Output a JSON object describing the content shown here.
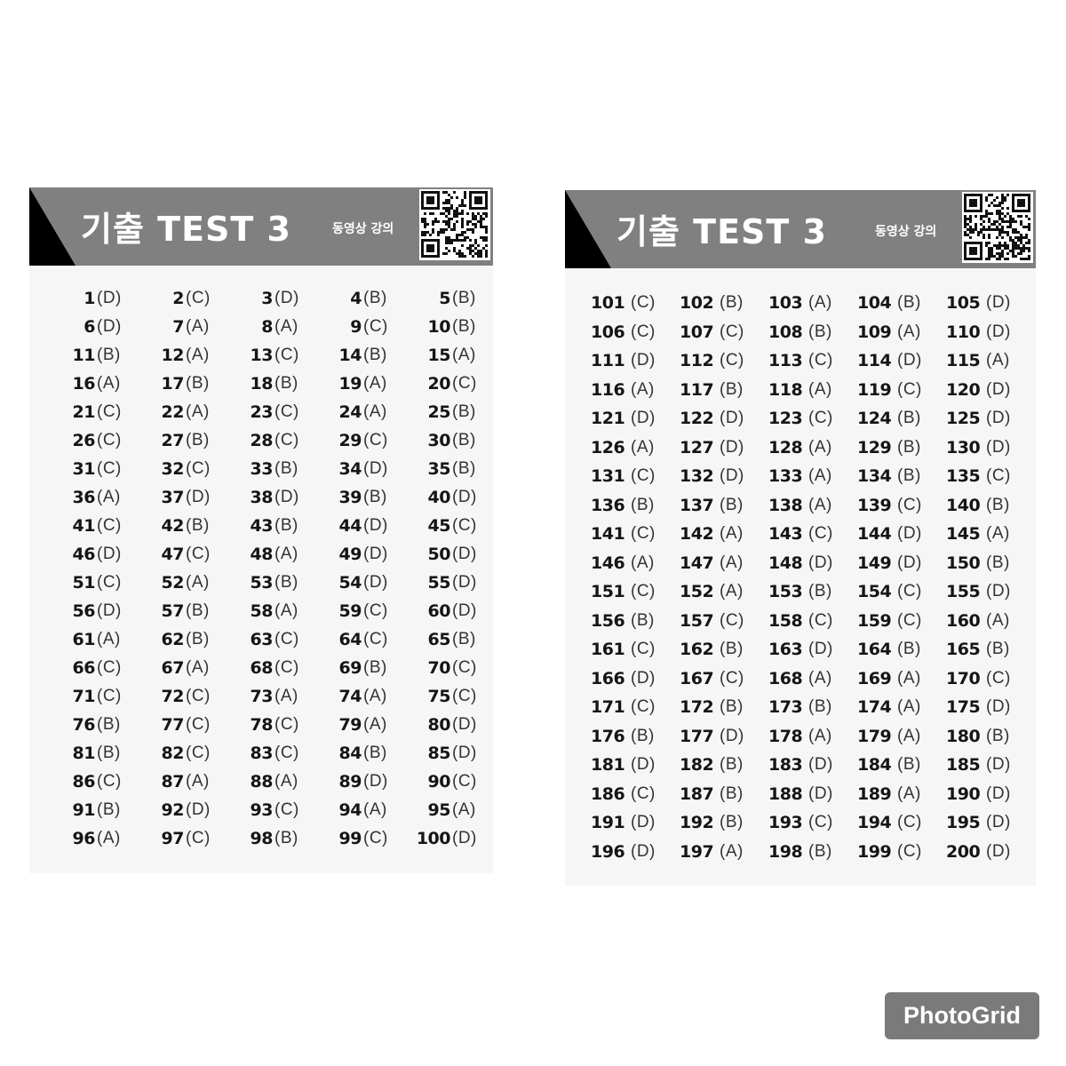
{
  "panels": [
    {
      "title": "기출 TEST 3",
      "subtitle": "동영상 강의",
      "answers": [
        {
          "n": "1",
          "a": "(D)"
        },
        {
          "n": "2",
          "a": "(C)"
        },
        {
          "n": "3",
          "a": "(D)"
        },
        {
          "n": "4",
          "a": "(B)"
        },
        {
          "n": "5",
          "a": "(B)"
        },
        {
          "n": "6",
          "a": "(D)"
        },
        {
          "n": "7",
          "a": "(A)"
        },
        {
          "n": "8",
          "a": "(A)"
        },
        {
          "n": "9",
          "a": "(C)"
        },
        {
          "n": "10",
          "a": "(B)"
        },
        {
          "n": "11",
          "a": "(B)"
        },
        {
          "n": "12",
          "a": "(A)"
        },
        {
          "n": "13",
          "a": "(C)"
        },
        {
          "n": "14",
          "a": "(B)"
        },
        {
          "n": "15",
          "a": "(A)"
        },
        {
          "n": "16",
          "a": "(A)"
        },
        {
          "n": "17",
          "a": "(B)"
        },
        {
          "n": "18",
          "a": "(B)"
        },
        {
          "n": "19",
          "a": "(A)"
        },
        {
          "n": "20",
          "a": "(C)"
        },
        {
          "n": "21",
          "a": "(C)"
        },
        {
          "n": "22",
          "a": "(A)"
        },
        {
          "n": "23",
          "a": "(C)"
        },
        {
          "n": "24",
          "a": "(A)"
        },
        {
          "n": "25",
          "a": "(B)"
        },
        {
          "n": "26",
          "a": "(C)"
        },
        {
          "n": "27",
          "a": "(B)"
        },
        {
          "n": "28",
          "a": "(C)"
        },
        {
          "n": "29",
          "a": "(C)"
        },
        {
          "n": "30",
          "a": "(B)"
        },
        {
          "n": "31",
          "a": "(C)"
        },
        {
          "n": "32",
          "a": "(C)"
        },
        {
          "n": "33",
          "a": "(B)"
        },
        {
          "n": "34",
          "a": "(D)"
        },
        {
          "n": "35",
          "a": "(B)"
        },
        {
          "n": "36",
          "a": "(A)"
        },
        {
          "n": "37",
          "a": "(D)"
        },
        {
          "n": "38",
          "a": "(D)"
        },
        {
          "n": "39",
          "a": "(B)"
        },
        {
          "n": "40",
          "a": "(D)"
        },
        {
          "n": "41",
          "a": "(C)"
        },
        {
          "n": "42",
          "a": "(B)"
        },
        {
          "n": "43",
          "a": "(B)"
        },
        {
          "n": "44",
          "a": "(D)"
        },
        {
          "n": "45",
          "a": "(C)"
        },
        {
          "n": "46",
          "a": "(D)"
        },
        {
          "n": "47",
          "a": "(C)"
        },
        {
          "n": "48",
          "a": "(A)"
        },
        {
          "n": "49",
          "a": "(D)"
        },
        {
          "n": "50",
          "a": "(D)"
        },
        {
          "n": "51",
          "a": "(C)"
        },
        {
          "n": "52",
          "a": "(A)"
        },
        {
          "n": "53",
          "a": "(B)"
        },
        {
          "n": "54",
          "a": "(D)"
        },
        {
          "n": "55",
          "a": "(D)"
        },
        {
          "n": "56",
          "a": "(D)"
        },
        {
          "n": "57",
          "a": "(B)"
        },
        {
          "n": "58",
          "a": "(A)"
        },
        {
          "n": "59",
          "a": "(C)"
        },
        {
          "n": "60",
          "a": "(D)"
        },
        {
          "n": "61",
          "a": "(A)"
        },
        {
          "n": "62",
          "a": "(B)"
        },
        {
          "n": "63",
          "a": "(C)"
        },
        {
          "n": "64",
          "a": "(C)"
        },
        {
          "n": "65",
          "a": "(B)"
        },
        {
          "n": "66",
          "a": "(C)"
        },
        {
          "n": "67",
          "a": "(A)"
        },
        {
          "n": "68",
          "a": "(C)"
        },
        {
          "n": "69",
          "a": "(B)"
        },
        {
          "n": "70",
          "a": "(C)"
        },
        {
          "n": "71",
          "a": "(C)"
        },
        {
          "n": "72",
          "a": "(C)"
        },
        {
          "n": "73",
          "a": "(A)"
        },
        {
          "n": "74",
          "a": "(A)"
        },
        {
          "n": "75",
          "a": "(C)"
        },
        {
          "n": "76",
          "a": "(B)"
        },
        {
          "n": "77",
          "a": "(C)"
        },
        {
          "n": "78",
          "a": "(C)"
        },
        {
          "n": "79",
          "a": "(A)"
        },
        {
          "n": "80",
          "a": "(D)"
        },
        {
          "n": "81",
          "a": "(B)"
        },
        {
          "n": "82",
          "a": "(C)"
        },
        {
          "n": "83",
          "a": "(C)"
        },
        {
          "n": "84",
          "a": "(B)"
        },
        {
          "n": "85",
          "a": "(D)"
        },
        {
          "n": "86",
          "a": "(C)"
        },
        {
          "n": "87",
          "a": "(A)"
        },
        {
          "n": "88",
          "a": "(A)"
        },
        {
          "n": "89",
          "a": "(D)"
        },
        {
          "n": "90",
          "a": "(C)"
        },
        {
          "n": "91",
          "a": "(B)"
        },
        {
          "n": "92",
          "a": "(D)"
        },
        {
          "n": "93",
          "a": "(C)"
        },
        {
          "n": "94",
          "a": "(A)"
        },
        {
          "n": "95",
          "a": "(A)"
        },
        {
          "n": "96",
          "a": "(A)"
        },
        {
          "n": "97",
          "a": "(C)"
        },
        {
          "n": "98",
          "a": "(B)"
        },
        {
          "n": "99",
          "a": "(C)"
        },
        {
          "n": "100",
          "a": "(D)"
        }
      ]
    },
    {
      "title": "기출 TEST 3",
      "subtitle": "동영상 강의",
      "answers": [
        {
          "n": "101",
          "a": "(C)"
        },
        {
          "n": "102",
          "a": "(B)"
        },
        {
          "n": "103",
          "a": "(A)"
        },
        {
          "n": "104",
          "a": "(B)"
        },
        {
          "n": "105",
          "a": "(D)"
        },
        {
          "n": "106",
          "a": "(C)"
        },
        {
          "n": "107",
          "a": "(C)"
        },
        {
          "n": "108",
          "a": "(B)"
        },
        {
          "n": "109",
          "a": "(A)"
        },
        {
          "n": "110",
          "a": "(D)"
        },
        {
          "n": "111",
          "a": "(D)"
        },
        {
          "n": "112",
          "a": "(C)"
        },
        {
          "n": "113",
          "a": "(C)"
        },
        {
          "n": "114",
          "a": "(D)"
        },
        {
          "n": "115",
          "a": "(A)"
        },
        {
          "n": "116",
          "a": "(A)"
        },
        {
          "n": "117",
          "a": "(B)"
        },
        {
          "n": "118",
          "a": "(A)"
        },
        {
          "n": "119",
          "a": "(C)"
        },
        {
          "n": "120",
          "a": "(D)"
        },
        {
          "n": "121",
          "a": "(D)"
        },
        {
          "n": "122",
          "a": "(D)"
        },
        {
          "n": "123",
          "a": "(C)"
        },
        {
          "n": "124",
          "a": "(B)"
        },
        {
          "n": "125",
          "a": "(D)"
        },
        {
          "n": "126",
          "a": "(A)"
        },
        {
          "n": "127",
          "a": "(D)"
        },
        {
          "n": "128",
          "a": "(A)"
        },
        {
          "n": "129",
          "a": "(B)"
        },
        {
          "n": "130",
          "a": "(D)"
        },
        {
          "n": "131",
          "a": "(C)"
        },
        {
          "n": "132",
          "a": "(D)"
        },
        {
          "n": "133",
          "a": "(A)"
        },
        {
          "n": "134",
          "a": "(B)"
        },
        {
          "n": "135",
          "a": "(C)"
        },
        {
          "n": "136",
          "a": "(B)"
        },
        {
          "n": "137",
          "a": "(B)"
        },
        {
          "n": "138",
          "a": "(A)"
        },
        {
          "n": "139",
          "a": "(C)"
        },
        {
          "n": "140",
          "a": "(B)"
        },
        {
          "n": "141",
          "a": "(C)"
        },
        {
          "n": "142",
          "a": "(A)"
        },
        {
          "n": "143",
          "a": "(C)"
        },
        {
          "n": "144",
          "a": "(D)"
        },
        {
          "n": "145",
          "a": "(A)"
        },
        {
          "n": "146",
          "a": "(A)"
        },
        {
          "n": "147",
          "a": "(A)"
        },
        {
          "n": "148",
          "a": "(D)"
        },
        {
          "n": "149",
          "a": "(D)"
        },
        {
          "n": "150",
          "a": "(B)"
        },
        {
          "n": "151",
          "a": "(C)"
        },
        {
          "n": "152",
          "a": "(A)"
        },
        {
          "n": "153",
          "a": "(B)"
        },
        {
          "n": "154",
          "a": "(C)"
        },
        {
          "n": "155",
          "a": "(D)"
        },
        {
          "n": "156",
          "a": "(B)"
        },
        {
          "n": "157",
          "a": "(C)"
        },
        {
          "n": "158",
          "a": "(C)"
        },
        {
          "n": "159",
          "a": "(C)"
        },
        {
          "n": "160",
          "a": "(A)"
        },
        {
          "n": "161",
          "a": "(C)"
        },
        {
          "n": "162",
          "a": "(B)"
        },
        {
          "n": "163",
          "a": "(D)"
        },
        {
          "n": "164",
          "a": "(B)"
        },
        {
          "n": "165",
          "a": "(B)"
        },
        {
          "n": "166",
          "a": "(D)"
        },
        {
          "n": "167",
          "a": "(C)"
        },
        {
          "n": "168",
          "a": "(A)"
        },
        {
          "n": "169",
          "a": "(A)"
        },
        {
          "n": "170",
          "a": "(C)"
        },
        {
          "n": "171",
          "a": "(C)"
        },
        {
          "n": "172",
          "a": "(B)"
        },
        {
          "n": "173",
          "a": "(B)"
        },
        {
          "n": "174",
          "a": "(A)"
        },
        {
          "n": "175",
          "a": "(D)"
        },
        {
          "n": "176",
          "a": "(B)"
        },
        {
          "n": "177",
          "a": "(D)"
        },
        {
          "n": "178",
          "a": "(A)"
        },
        {
          "n": "179",
          "a": "(A)"
        },
        {
          "n": "180",
          "a": "(B)"
        },
        {
          "n": "181",
          "a": "(D)"
        },
        {
          "n": "182",
          "a": "(B)"
        },
        {
          "n": "183",
          "a": "(D)"
        },
        {
          "n": "184",
          "a": "(B)"
        },
        {
          "n": "185",
          "a": "(D)"
        },
        {
          "n": "186",
          "a": "(C)"
        },
        {
          "n": "187",
          "a": "(B)"
        },
        {
          "n": "188",
          "a": "(D)"
        },
        {
          "n": "189",
          "a": "(A)"
        },
        {
          "n": "190",
          "a": "(D)"
        },
        {
          "n": "191",
          "a": "(D)"
        },
        {
          "n": "192",
          "a": "(B)"
        },
        {
          "n": "193",
          "a": "(C)"
        },
        {
          "n": "194",
          "a": "(C)"
        },
        {
          "n": "195",
          "a": "(D)"
        },
        {
          "n": "196",
          "a": "(D)"
        },
        {
          "n": "197",
          "a": "(A)"
        },
        {
          "n": "198",
          "a": "(B)"
        },
        {
          "n": "199",
          "a": "(C)"
        },
        {
          "n": "200",
          "a": "(D)"
        }
      ]
    }
  ],
  "qr_icon": "qr-code-icon",
  "watermark": "PhotoGrid",
  "colors": {
    "header": "#808080",
    "corner": "#000000",
    "card": "#f6f6f6",
    "watermark_bg": "#7a7a7a"
  }
}
